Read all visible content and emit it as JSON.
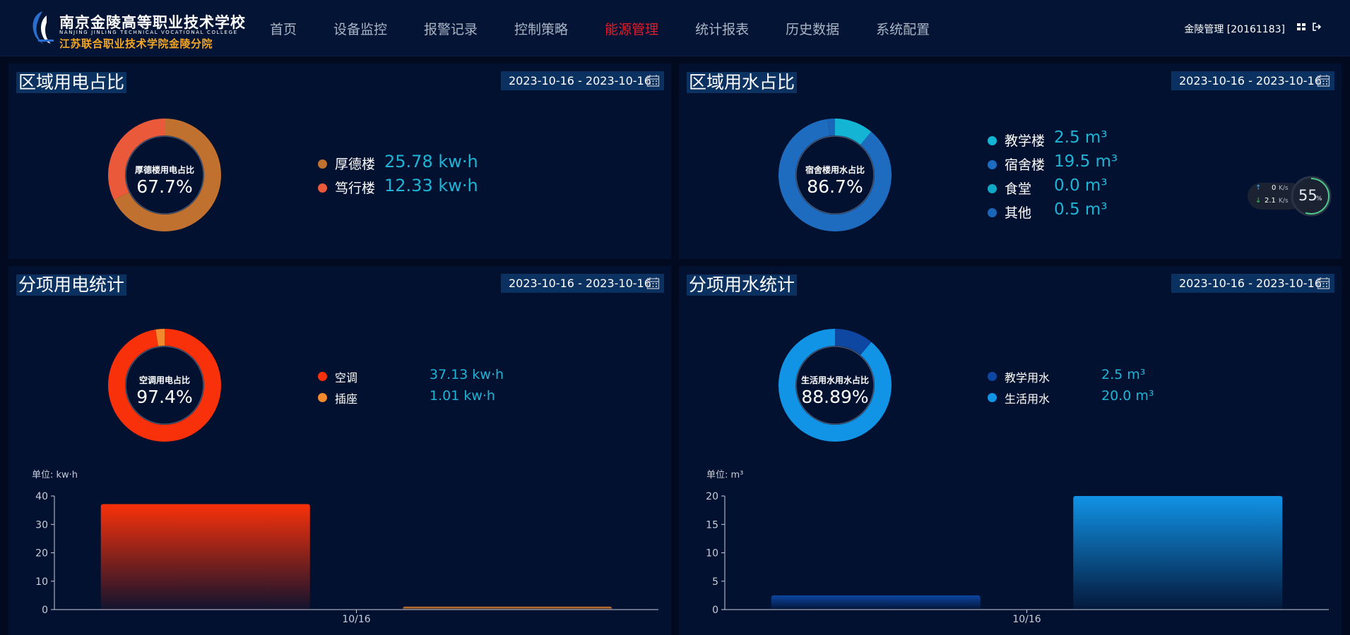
{
  "header": {
    "logo": {
      "name_cn": "南京金陵高等职业技术学校",
      "name_en": "NANJING JINLING TECHNICAL VOCATIONAL COLLEGE",
      "subname_cn": "江苏联合职业技术学院金陵分院",
      "accent_color": "#f5a623"
    },
    "nav": [
      {
        "label": "首页"
      },
      {
        "label": "设备监控"
      },
      {
        "label": "报警记录"
      },
      {
        "label": "控制策略"
      },
      {
        "label": "能源管理",
        "active": true
      },
      {
        "label": "统计报表"
      },
      {
        "label": "历史数据"
      },
      {
        "label": "系统配置"
      }
    ],
    "active_color": "#e41b2a",
    "user": "金陵管理 [20161183]",
    "icons": [
      "grid-icon",
      "logout-icon"
    ]
  },
  "panels": {
    "elec_ratio": {
      "title": "区域用电占比",
      "date_range": "2023-10-16 - 2023-10-16",
      "donut": {
        "label": "厚德楼用电占比",
        "value": "67.7%",
        "fractions": [
          0.677,
          0.323
        ],
        "colors": [
          "#c0712f",
          "#ea5a3a"
        ]
      },
      "legend": [
        {
          "name": "厚德楼",
          "value": "25.78 kw·h",
          "color": "#c0712f"
        },
        {
          "name": "笃行楼",
          "value": "12.33 kw·h",
          "color": "#ea5a3a"
        }
      ]
    },
    "water_ratio": {
      "title": "区域用水占比",
      "date_range": "2023-10-16 - 2023-10-16",
      "donut": {
        "label": "宿舍楼用水占比",
        "value": "86.7%",
        "fractions": [
          0.111,
          0.867,
          0.0,
          0.022
        ],
        "colors": [
          "#14b4d4",
          "#1d6cc0",
          "#0fa9c7",
          "#1a66b8"
        ]
      },
      "legend": [
        {
          "name": "教学楼",
          "value": "2.5 m³",
          "color": "#14b4d4"
        },
        {
          "name": "宿舍楼",
          "value": "19.5 m³",
          "color": "#1d6cc0"
        },
        {
          "name": "食堂",
          "value": "0.0 m³",
          "color": "#0fa9c7"
        },
        {
          "name": "其他",
          "value": "0.5 m³",
          "color": "#1a66b8"
        }
      ],
      "speed_widget": {
        "up": "0",
        "up_unit": "K/s",
        "down": "2.1",
        "down_unit": "K/s",
        "percent": "55",
        "percent_unit": "%",
        "fraction": 0.55
      }
    },
    "elec_items": {
      "title": "分项用电统计",
      "date_range": "2023-10-16 - 2023-10-16",
      "donut": {
        "label": "空调用电占比",
        "value": "97.4%",
        "fractions": [
          0.974,
          0.026
        ],
        "colors": [
          "#f9310a",
          "#f08a2c"
        ]
      },
      "legend": [
        {
          "name": "空调",
          "value": "37.13 kw·h",
          "color": "#f9310a"
        },
        {
          "name": "插座",
          "value": "1.01 kw·h",
          "color": "#f08a2c"
        }
      ],
      "unit": "单位: kw·h"
    },
    "water_items": {
      "title": "分项用水统计",
      "date_range": "2023-10-16 - 2023-10-16",
      "donut": {
        "label": "生活用水用水占比",
        "value": "88.89%",
        "fractions": [
          0.1111,
          0.8889
        ],
        "colors": [
          "#0d47a1",
          "#1193e6"
        ]
      },
      "legend": [
        {
          "name": "教学用水",
          "value": "2.5 m³",
          "color": "#0d47a1"
        },
        {
          "name": "生活用水",
          "value": "20.0 m³",
          "color": "#1193e6"
        }
      ],
      "unit": "单位: m³"
    }
  },
  "chart_data": [
    {
      "type": "bar",
      "categories": [
        "10/16"
      ],
      "series": [
        {
          "name": "空调",
          "values": [
            37.13
          ],
          "color": "#f9310a"
        },
        {
          "name": "插座",
          "values": [
            1.01
          ],
          "color": "#f08a2c"
        }
      ],
      "ylabel": "单位: kw·h",
      "ylim": [
        0,
        40
      ],
      "yticks": [
        0,
        10,
        20,
        30,
        40
      ]
    },
    {
      "type": "bar",
      "categories": [
        "10/16"
      ],
      "series": [
        {
          "name": "教学用水",
          "values": [
            2.5
          ],
          "color": "#0d47a1"
        },
        {
          "name": "生活用水",
          "values": [
            20.0
          ],
          "color": "#1193e6"
        }
      ],
      "ylabel": "单位: m³",
      "ylim": [
        0,
        20
      ],
      "yticks": [
        0,
        5,
        10,
        15,
        20
      ]
    }
  ]
}
